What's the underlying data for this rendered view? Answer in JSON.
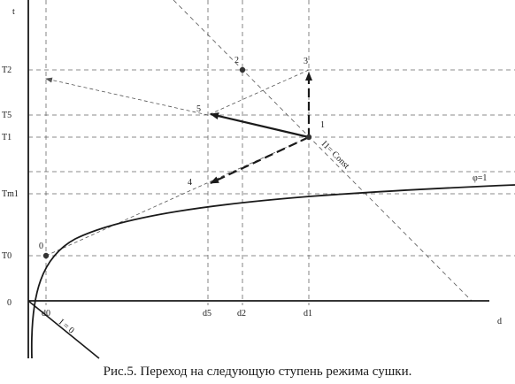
{
  "axes": {
    "y_axis_label": "t",
    "x_axis_label": "d",
    "origin_label": "0"
  },
  "t_levels": [
    {
      "id": "T2",
      "label": "T2"
    },
    {
      "id": "T5",
      "label": "T5"
    },
    {
      "id": "T1",
      "label": "T1"
    },
    {
      "id": "Tm1",
      "label": "Tm1"
    },
    {
      "id": "T0",
      "label": "T0"
    }
  ],
  "d_levels": [
    {
      "id": "d0",
      "label": "d0"
    },
    {
      "id": "d5",
      "label": "d5"
    },
    {
      "id": "d2",
      "label": "d2"
    },
    {
      "id": "d1",
      "label": "d1"
    }
  ],
  "points": [
    {
      "id": "0",
      "label": "0",
      "marker": "dot"
    },
    {
      "id": "1",
      "label": "1",
      "marker": "dot"
    },
    {
      "id": "2",
      "label": "2",
      "marker": "dot"
    },
    {
      "id": "3",
      "label": "3",
      "marker": "none"
    },
    {
      "id": "4",
      "label": "4",
      "marker": "none"
    },
    {
      "id": "5",
      "label": "5",
      "marker": "none"
    }
  ],
  "curves": {
    "saturation_label": "φ=1",
    "isenthalp_label": "I1= Const",
    "zero_enthalpy_label": "I = 0"
  },
  "caption": "Рис.5. Переход на следующую ступень режима сушки.",
  "colors": {
    "ink": "#1a1a1a",
    "dashed": "#555555"
  }
}
